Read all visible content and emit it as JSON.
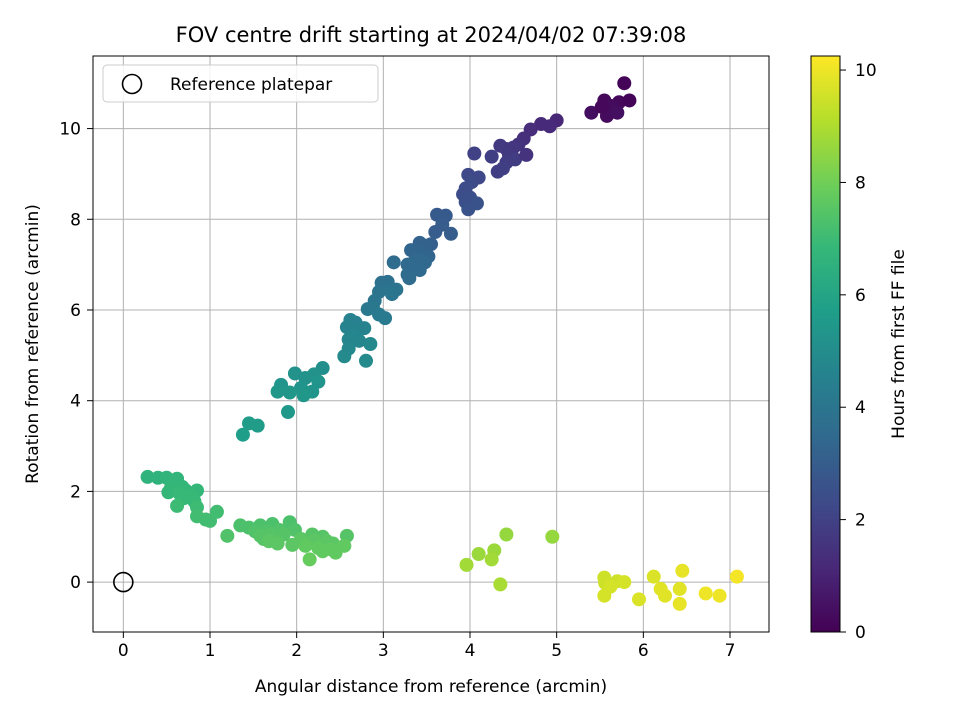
{
  "chart_data": {
    "type": "scatter",
    "title": "FOV centre drift starting at 2024/04/02 07:39:08",
    "xlabel": "Angular distance from reference (arcmin)",
    "ylabel": "Rotation from reference (arcmin)",
    "xlim": [
      -0.35,
      7.45
    ],
    "ylim": [
      -1.1,
      11.6
    ],
    "xticks": [
      "0",
      "1",
      "2",
      "3",
      "4",
      "5",
      "6",
      "7"
    ],
    "yticks": [
      "0",
      "2",
      "4",
      "6",
      "8",
      "10"
    ],
    "grid": true,
    "legend": {
      "placement": "upper-left",
      "entries": [
        {
          "label": "Reference platepar",
          "marker": "open-circle",
          "x": 0,
          "y": 0
        }
      ]
    },
    "colorbar": {
      "label": "Hours from first FF file",
      "colormap": "viridis",
      "range": [
        0,
        10.25
      ],
      "ticks": [
        "0",
        "2",
        "4",
        "6",
        "8",
        "10"
      ]
    },
    "colormap_stops": [
      "#440154",
      "#482878",
      "#3e4a89",
      "#31688e",
      "#26828e",
      "#1f9e89",
      "#35b779",
      "#6ece58",
      "#b5de2b",
      "#fde725"
    ],
    "series": [
      {
        "points": [
          {
            "x": 5.78,
            "y": 11.0,
            "h": 0.1
          },
          {
            "x": 5.55,
            "y": 10.62,
            "h": 0.2
          },
          {
            "x": 5.72,
            "y": 10.58,
            "h": 0.2
          },
          {
            "x": 5.84,
            "y": 10.62,
            "h": 0.1
          },
          {
            "x": 5.62,
            "y": 10.5,
            "h": 0.3
          },
          {
            "x": 5.4,
            "y": 10.35,
            "h": 0.4
          },
          {
            "x": 5.58,
            "y": 10.28,
            "h": 0.3
          },
          {
            "x": 5.7,
            "y": 10.35,
            "h": 0.4
          },
          {
            "x": 5.52,
            "y": 10.48,
            "h": 0.2
          },
          {
            "x": 5.0,
            "y": 10.18,
            "h": 1.1
          },
          {
            "x": 4.92,
            "y": 10.05,
            "h": 1.2
          },
          {
            "x": 4.82,
            "y": 10.1,
            "h": 1.2
          },
          {
            "x": 4.7,
            "y": 9.98,
            "h": 1.3
          },
          {
            "x": 4.62,
            "y": 9.78,
            "h": 1.4
          },
          {
            "x": 4.56,
            "y": 9.65,
            "h": 1.5
          },
          {
            "x": 4.5,
            "y": 9.58,
            "h": 1.6
          },
          {
            "x": 4.42,
            "y": 9.55,
            "h": 1.6
          },
          {
            "x": 4.35,
            "y": 9.62,
            "h": 1.7
          },
          {
            "x": 4.45,
            "y": 9.42,
            "h": 1.7
          },
          {
            "x": 4.52,
            "y": 9.32,
            "h": 1.8
          },
          {
            "x": 4.42,
            "y": 9.25,
            "h": 1.8
          },
          {
            "x": 4.38,
            "y": 9.12,
            "h": 1.9
          },
          {
            "x": 4.32,
            "y": 9.05,
            "h": 1.9
          },
          {
            "x": 4.25,
            "y": 9.38,
            "h": 1.9
          },
          {
            "x": 4.65,
            "y": 9.42,
            "h": 1.5
          },
          {
            "x": 4.05,
            "y": 9.45,
            "h": 2.0
          },
          {
            "x": 4.1,
            "y": 8.92,
            "h": 2.2
          },
          {
            "x": 3.98,
            "y": 8.98,
            "h": 2.2
          },
          {
            "x": 4.02,
            "y": 8.82,
            "h": 2.3
          },
          {
            "x": 3.95,
            "y": 8.68,
            "h": 2.4
          },
          {
            "x": 3.92,
            "y": 8.55,
            "h": 2.4
          },
          {
            "x": 4.0,
            "y": 8.48,
            "h": 2.5
          },
          {
            "x": 3.95,
            "y": 8.38,
            "h": 2.5
          },
          {
            "x": 4.08,
            "y": 8.35,
            "h": 2.6
          },
          {
            "x": 3.98,
            "y": 8.22,
            "h": 2.6
          },
          {
            "x": 3.72,
            "y": 8.08,
            "h": 2.9
          },
          {
            "x": 3.62,
            "y": 8.1,
            "h": 2.9
          },
          {
            "x": 3.68,
            "y": 7.88,
            "h": 3.0
          },
          {
            "x": 3.78,
            "y": 7.68,
            "h": 3.0
          },
          {
            "x": 3.6,
            "y": 7.72,
            "h": 3.0
          },
          {
            "x": 3.55,
            "y": 7.45,
            "h": 3.1
          },
          {
            "x": 3.48,
            "y": 7.42,
            "h": 3.2
          },
          {
            "x": 3.42,
            "y": 7.48,
            "h": 3.2
          },
          {
            "x": 3.38,
            "y": 7.3,
            "h": 3.3
          },
          {
            "x": 3.32,
            "y": 7.32,
            "h": 3.3
          },
          {
            "x": 3.45,
            "y": 7.22,
            "h": 3.3
          },
          {
            "x": 3.52,
            "y": 7.18,
            "h": 3.3
          },
          {
            "x": 3.4,
            "y": 7.12,
            "h": 3.4
          },
          {
            "x": 3.35,
            "y": 7.05,
            "h": 3.4
          },
          {
            "x": 3.28,
            "y": 7.0,
            "h": 3.5
          },
          {
            "x": 3.48,
            "y": 7.05,
            "h": 3.4
          },
          {
            "x": 3.32,
            "y": 6.9,
            "h": 3.5
          },
          {
            "x": 3.42,
            "y": 6.88,
            "h": 3.5
          },
          {
            "x": 3.28,
            "y": 6.78,
            "h": 3.6
          },
          {
            "x": 3.3,
            "y": 6.7,
            "h": 3.6
          },
          {
            "x": 3.12,
            "y": 7.05,
            "h": 3.6
          },
          {
            "x": 3.05,
            "y": 6.62,
            "h": 3.8
          },
          {
            "x": 2.98,
            "y": 6.6,
            "h": 3.8
          },
          {
            "x": 3.02,
            "y": 6.5,
            "h": 3.8
          },
          {
            "x": 3.08,
            "y": 6.45,
            "h": 3.9
          },
          {
            "x": 3.15,
            "y": 6.45,
            "h": 3.9
          },
          {
            "x": 2.95,
            "y": 6.4,
            "h": 3.9
          },
          {
            "x": 3.1,
            "y": 6.35,
            "h": 4.0
          },
          {
            "x": 2.9,
            "y": 6.2,
            "h": 4.0
          },
          {
            "x": 2.88,
            "y": 6.05,
            "h": 4.1
          },
          {
            "x": 2.82,
            "y": 6.02,
            "h": 4.1
          },
          {
            "x": 2.95,
            "y": 5.9,
            "h": 4.2
          },
          {
            "x": 3.02,
            "y": 5.82,
            "h": 4.2
          },
          {
            "x": 2.62,
            "y": 5.78,
            "h": 4.5
          },
          {
            "x": 2.68,
            "y": 5.72,
            "h": 4.5
          },
          {
            "x": 2.58,
            "y": 5.62,
            "h": 4.6
          },
          {
            "x": 2.78,
            "y": 5.6,
            "h": 4.6
          },
          {
            "x": 2.7,
            "y": 5.52,
            "h": 4.6
          },
          {
            "x": 2.65,
            "y": 5.42,
            "h": 4.7
          },
          {
            "x": 2.6,
            "y": 5.35,
            "h": 4.7
          },
          {
            "x": 2.72,
            "y": 5.32,
            "h": 4.7
          },
          {
            "x": 2.85,
            "y": 5.25,
            "h": 4.8
          },
          {
            "x": 2.6,
            "y": 5.15,
            "h": 4.8
          },
          {
            "x": 2.55,
            "y": 4.98,
            "h": 4.9
          },
          {
            "x": 2.8,
            "y": 4.88,
            "h": 4.9
          },
          {
            "x": 2.3,
            "y": 4.72,
            "h": 5.1
          },
          {
            "x": 2.2,
            "y": 4.58,
            "h": 5.2
          },
          {
            "x": 1.98,
            "y": 4.6,
            "h": 5.2
          },
          {
            "x": 2.1,
            "y": 4.5,
            "h": 5.2
          },
          {
            "x": 2.25,
            "y": 4.42,
            "h": 5.3
          },
          {
            "x": 1.82,
            "y": 4.35,
            "h": 5.3
          },
          {
            "x": 2.05,
            "y": 4.28,
            "h": 5.3
          },
          {
            "x": 1.78,
            "y": 4.2,
            "h": 5.4
          },
          {
            "x": 1.92,
            "y": 4.18,
            "h": 5.4
          },
          {
            "x": 2.18,
            "y": 4.2,
            "h": 5.3
          },
          {
            "x": 2.08,
            "y": 4.12,
            "h": 5.4
          },
          {
            "x": 1.9,
            "y": 3.75,
            "h": 5.5
          },
          {
            "x": 1.45,
            "y": 3.5,
            "h": 5.6
          },
          {
            "x": 1.55,
            "y": 3.45,
            "h": 5.6
          },
          {
            "x": 1.38,
            "y": 3.25,
            "h": 5.7
          },
          {
            "x": 0.28,
            "y": 2.32,
            "h": 6.6
          },
          {
            "x": 0.4,
            "y": 2.3,
            "h": 6.6
          },
          {
            "x": 0.5,
            "y": 2.3,
            "h": 6.7
          },
          {
            "x": 0.62,
            "y": 2.28,
            "h": 6.7
          },
          {
            "x": 0.58,
            "y": 2.15,
            "h": 6.7
          },
          {
            "x": 0.68,
            "y": 2.1,
            "h": 6.8
          },
          {
            "x": 0.55,
            "y": 2.08,
            "h": 6.8
          },
          {
            "x": 0.72,
            "y": 2.02,
            "h": 6.8
          },
          {
            "x": 0.85,
            "y": 2.02,
            "h": 6.8
          },
          {
            "x": 0.52,
            "y": 1.98,
            "h": 6.8
          },
          {
            "x": 0.65,
            "y": 1.95,
            "h": 6.9
          },
          {
            "x": 0.78,
            "y": 1.9,
            "h": 6.9
          },
          {
            "x": 0.7,
            "y": 1.85,
            "h": 6.9
          },
          {
            "x": 0.82,
            "y": 1.78,
            "h": 6.9
          },
          {
            "x": 0.62,
            "y": 1.68,
            "h": 7.0
          },
          {
            "x": 0.85,
            "y": 1.65,
            "h": 7.0
          },
          {
            "x": 1.08,
            "y": 1.55,
            "h": 7.1
          },
          {
            "x": 0.85,
            "y": 1.45,
            "h": 7.1
          },
          {
            "x": 0.95,
            "y": 1.38,
            "h": 7.1
          },
          {
            "x": 1.0,
            "y": 1.35,
            "h": 7.1
          },
          {
            "x": 1.35,
            "y": 1.25,
            "h": 7.3
          },
          {
            "x": 1.45,
            "y": 1.2,
            "h": 7.3
          },
          {
            "x": 1.58,
            "y": 1.25,
            "h": 7.3
          },
          {
            "x": 1.72,
            "y": 1.28,
            "h": 7.3
          },
          {
            "x": 1.92,
            "y": 1.32,
            "h": 7.3
          },
          {
            "x": 1.52,
            "y": 1.12,
            "h": 7.4
          },
          {
            "x": 1.65,
            "y": 1.12,
            "h": 7.4
          },
          {
            "x": 1.8,
            "y": 1.15,
            "h": 7.4
          },
          {
            "x": 1.98,
            "y": 1.15,
            "h": 7.4
          },
          {
            "x": 1.2,
            "y": 1.02,
            "h": 7.4
          },
          {
            "x": 1.58,
            "y": 1.02,
            "h": 7.5
          },
          {
            "x": 1.7,
            "y": 1.05,
            "h": 7.5
          },
          {
            "x": 1.85,
            "y": 1.05,
            "h": 7.5
          },
          {
            "x": 2.18,
            "y": 1.05,
            "h": 7.5
          },
          {
            "x": 2.3,
            "y": 1.0,
            "h": 7.5
          },
          {
            "x": 2.58,
            "y": 1.02,
            "h": 7.5
          },
          {
            "x": 1.62,
            "y": 0.95,
            "h": 7.5
          },
          {
            "x": 1.75,
            "y": 0.95,
            "h": 7.5
          },
          {
            "x": 2.05,
            "y": 0.95,
            "h": 7.6
          },
          {
            "x": 1.68,
            "y": 0.9,
            "h": 7.6
          },
          {
            "x": 2.2,
            "y": 0.92,
            "h": 7.6
          },
          {
            "x": 2.35,
            "y": 0.9,
            "h": 7.6
          },
          {
            "x": 2.42,
            "y": 0.85,
            "h": 7.6
          },
          {
            "x": 1.78,
            "y": 0.85,
            "h": 7.6
          },
          {
            "x": 1.95,
            "y": 0.82,
            "h": 7.6
          },
          {
            "x": 2.1,
            "y": 0.8,
            "h": 7.7
          },
          {
            "x": 2.55,
            "y": 0.8,
            "h": 7.7
          },
          {
            "x": 2.25,
            "y": 0.75,
            "h": 7.7
          },
          {
            "x": 2.4,
            "y": 0.72,
            "h": 7.7
          },
          {
            "x": 2.3,
            "y": 0.68,
            "h": 7.7
          },
          {
            "x": 2.45,
            "y": 0.65,
            "h": 7.7
          },
          {
            "x": 2.15,
            "y": 0.5,
            "h": 7.8
          },
          {
            "x": 4.42,
            "y": 1.05,
            "h": 8.6
          },
          {
            "x": 4.95,
            "y": 1.0,
            "h": 8.6
          },
          {
            "x": 4.28,
            "y": 0.7,
            "h": 8.7
          },
          {
            "x": 4.1,
            "y": 0.62,
            "h": 8.7
          },
          {
            "x": 4.25,
            "y": 0.5,
            "h": 8.8
          },
          {
            "x": 3.96,
            "y": 0.38,
            "h": 8.8
          },
          {
            "x": 4.35,
            "y": -0.05,
            "h": 8.9
          },
          {
            "x": 5.55,
            "y": 0.1,
            "h": 9.5
          },
          {
            "x": 5.7,
            "y": 0.02,
            "h": 9.5
          },
          {
            "x": 5.78,
            "y": 0.0,
            "h": 9.6
          },
          {
            "x": 5.56,
            "y": -0.02,
            "h": 9.5
          },
          {
            "x": 5.62,
            "y": -0.1,
            "h": 9.6
          },
          {
            "x": 5.55,
            "y": -0.3,
            "h": 9.6
          },
          {
            "x": 5.95,
            "y": -0.38,
            "h": 9.7
          },
          {
            "x": 6.12,
            "y": 0.12,
            "h": 9.7
          },
          {
            "x": 6.2,
            "y": -0.15,
            "h": 9.8
          },
          {
            "x": 6.25,
            "y": -0.3,
            "h": 9.8
          },
          {
            "x": 6.42,
            "y": -0.15,
            "h": 9.8
          },
          {
            "x": 6.45,
            "y": 0.25,
            "h": 9.9
          },
          {
            "x": 6.42,
            "y": -0.48,
            "h": 9.9
          },
          {
            "x": 6.72,
            "y": -0.25,
            "h": 10.0
          },
          {
            "x": 6.88,
            "y": -0.3,
            "h": 10.0
          },
          {
            "x": 7.08,
            "y": 0.12,
            "h": 10.1
          }
        ]
      }
    ]
  }
}
